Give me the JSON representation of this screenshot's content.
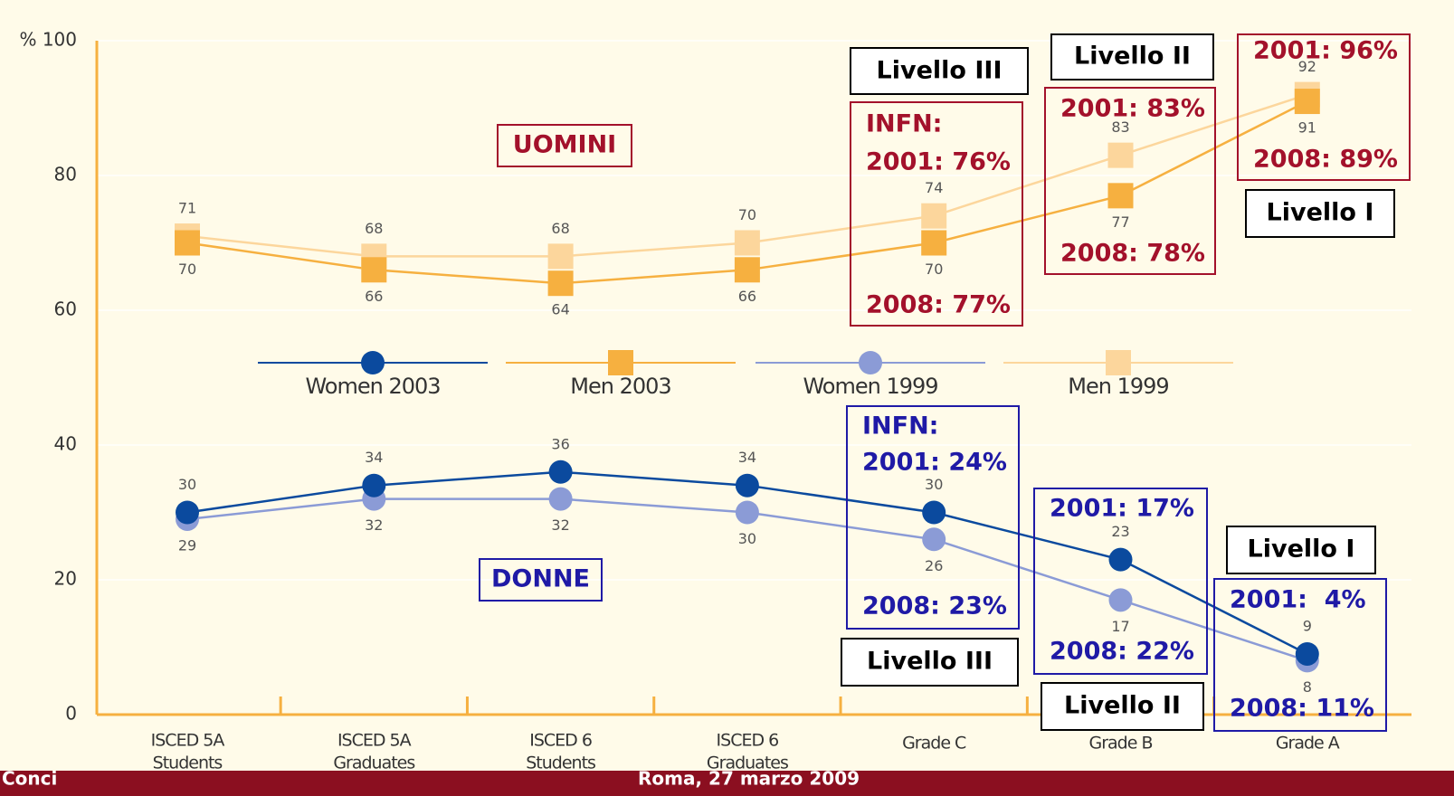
{
  "chart_data": {
    "type": "line",
    "categories": [
      [
        "ISCED 5A",
        "Students"
      ],
      [
        "ISCED 5A",
        "Graduates"
      ],
      [
        "ISCED 6",
        "Students"
      ],
      [
        "ISCED 6",
        "Graduates"
      ],
      [
        "Grade C"
      ],
      [
        "Grade B"
      ],
      [
        "Grade A"
      ]
    ],
    "ylim": [
      0,
      100
    ],
    "yticks": [
      0,
      20,
      40,
      60,
      80,
      {
        "value": 100,
        "label": "% 100"
      }
    ],
    "grid": true,
    "series": [
      {
        "name": "Women 2003",
        "color": "#0b4a9e",
        "marker": "circle",
        "label_position": "above",
        "values": [
          30,
          34,
          36,
          34,
          30,
          23,
          9
        ]
      },
      {
        "name": "Men 2003",
        "color": "#f6b040",
        "marker": "square",
        "label_position": "below",
        "values": [
          70,
          66,
          64,
          66,
          70,
          77,
          91
        ]
      },
      {
        "name": "Women 1999",
        "color": "#8b9bd6",
        "marker": "circle",
        "label_position": "below",
        "values": [
          29,
          32,
          32,
          30,
          26,
          17,
          8
        ]
      },
      {
        "name": "Men 1999",
        "color": "#fcd69c",
        "marker": "square",
        "label_position": "above",
        "values": [
          71,
          68,
          68,
          70,
          74,
          83,
          92
        ]
      }
    ],
    "annotations": [
      {
        "lines": [
          "UOMINI"
        ],
        "color": "#a3112b"
      },
      {
        "lines": [
          "DONNE"
        ],
        "color": "#1f1aa6"
      },
      {
        "lines": [
          "INFN:",
          "2001: 76%",
          "2008: 77%"
        ],
        "color": "#a3112b"
      },
      {
        "lines": [
          "2001: 83%",
          "2008: 78%"
        ],
        "color": "#a3112b"
      },
      {
        "lines": [
          "2001: 96%",
          "2008: 89%"
        ],
        "color": "#a3112b"
      },
      {
        "lines": [
          "Livello III"
        ],
        "color": "#000000"
      },
      {
        "lines": [
          "Livello II"
        ],
        "color": "#000000"
      },
      {
        "lines": [
          "Livello I"
        ],
        "color": "#000000"
      },
      {
        "lines": [
          "INFN:",
          "2001: 24%",
          "2008: 23%"
        ],
        "color": "#1f1aa6"
      },
      {
        "lines": [
          "2001: 17%",
          "2008: 22%"
        ],
        "color": "#1f1aa6"
      },
      {
        "lines": [
          "2001:  4%",
          "2008: 11%"
        ],
        "color": "#1f1aa6"
      },
      {
        "lines": [
          "Livello III"
        ],
        "color": "#000000"
      },
      {
        "lines": [
          "Livello I"
        ],
        "color": "#000000"
      },
      {
        "lines": [
          "Livello II"
        ],
        "color": "#000000"
      }
    ]
  },
  "footer": {
    "left": "Conci",
    "center": "Roma, 27 marzo 2009"
  }
}
